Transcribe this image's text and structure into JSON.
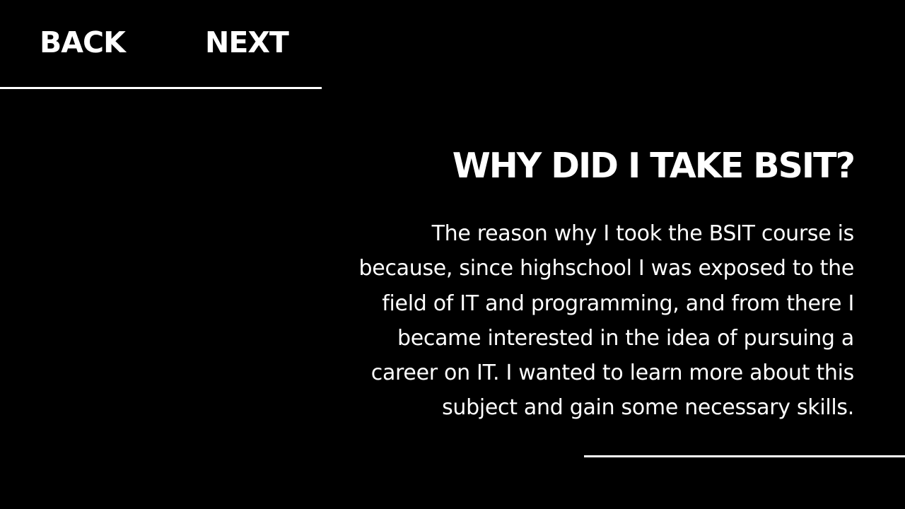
{
  "nav": {
    "back_label": "BACK",
    "next_label": "NEXT"
  },
  "slide": {
    "title": "WHY DID I TAKE BSIT?",
    "body_lines": [
      "The reason why I took the BSIT course is",
      "because, since highschool I was exposed to the",
      "field of IT and programming, and from there I",
      "became interested in the idea of pursuing a",
      "career on IT. I wanted to learn more about this",
      "subject and gain some necessary skills."
    ]
  },
  "colors": {
    "background": "#000000",
    "text": "#ffffff",
    "rule": "#ffffff"
  }
}
